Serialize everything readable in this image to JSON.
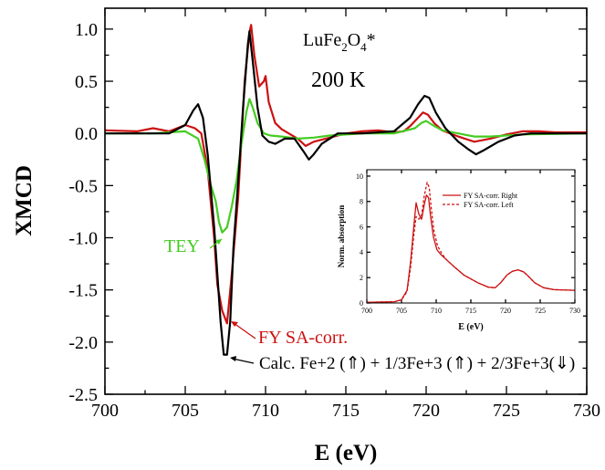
{
  "chart_data": {
    "type": "line",
    "xlabel": "E (eV)",
    "ylabel": "XMCD",
    "xlim": [
      700,
      730
    ],
    "ylim": [
      -2.5,
      1.2
    ],
    "xticks": [
      "700",
      "705",
      "710",
      "715",
      "720",
      "725",
      "730"
    ],
    "yticks": [
      "1.0",
      "0.5",
      "0.0",
      "-0.5",
      "-1.0",
      "-1.5",
      "-2.0",
      "-2.5"
    ],
    "grid": false,
    "annotations": {
      "compound": "LuFe",
      "compound_sub1": "2",
      "compound_mid": "O",
      "compound_sub2": "4",
      "compound_star": "*",
      "temperature": "200 K",
      "tey_label": "TEY",
      "fy_label": "FY SA-corr.",
      "calc_label": "Calc.  Fe+2 (⇑) + 1/3Fe+3 (⇑) + 2/3Fe+3(⇓)"
    },
    "series": [
      {
        "name": "FY SA-corr.",
        "color": "#cc1111",
        "x": [
          700,
          702,
          703,
          704,
          705,
          705.6,
          706,
          706.4,
          706.8,
          707.0,
          707.3,
          707.6,
          707.9,
          708.3,
          708.7,
          709.0,
          709.1,
          709.3,
          709.6,
          709.9,
          710.0,
          710.2,
          710.6,
          711,
          712,
          712.5,
          713,
          714,
          715,
          716,
          717,
          718,
          718.6,
          719.0,
          719.5,
          719.8,
          720.1,
          720.5,
          721,
          722,
          723,
          724,
          725,
          726,
          727,
          728,
          729,
          730
        ],
        "y": [
          0.03,
          0.02,
          0.05,
          0.02,
          0.08,
          0.05,
          0.0,
          -0.35,
          -1.0,
          -1.45,
          -1.7,
          -1.82,
          -1.35,
          -0.6,
          0.5,
          0.97,
          1.04,
          0.75,
          0.45,
          0.5,
          0.55,
          0.3,
          0.1,
          0.04,
          -0.05,
          -0.12,
          -0.08,
          -0.04,
          0.0,
          0.02,
          0.03,
          0.01,
          0.02,
          0.07,
          0.15,
          0.2,
          0.18,
          0.1,
          0.03,
          -0.03,
          -0.08,
          -0.05,
          -0.01,
          0.02,
          0.02,
          0.01,
          0.01,
          0.01
        ]
      },
      {
        "name": "TEY",
        "color": "#44cc22",
        "x": [
          700,
          703,
          705,
          705.8,
          706.2,
          706.6,
          706.9,
          707.1,
          707.3,
          707.6,
          707.9,
          708.2,
          708.5,
          708.8,
          709.0,
          709.2,
          709.5,
          709.9,
          710.3,
          711,
          712,
          713,
          714,
          716,
          718,
          719.3,
          719.7,
          720.0,
          720.4,
          721,
          722,
          723,
          724,
          726,
          730
        ],
        "y": [
          0.0,
          0.0,
          0.02,
          -0.05,
          -0.25,
          -0.5,
          -0.65,
          -0.85,
          -0.95,
          -0.9,
          -0.7,
          -0.45,
          -0.1,
          0.2,
          0.33,
          0.25,
          0.1,
          0.0,
          -0.02,
          -0.03,
          -0.05,
          -0.04,
          -0.02,
          0.0,
          0.0,
          0.05,
          0.1,
          0.12,
          0.08,
          0.03,
          0.0,
          -0.03,
          -0.03,
          -0.01,
          0.0
        ]
      },
      {
        "name": "Calc.",
        "color": "#000000",
        "x": [
          700,
          704,
          705,
          705.5,
          705.8,
          706.1,
          706.4,
          706.8,
          707.0,
          707.2,
          707.4,
          707.6,
          707.8,
          708.0,
          708.3,
          708.6,
          708.9,
          709.0,
          709.2,
          709.5,
          709.8,
          710.2,
          710.6,
          711.2,
          711.8,
          712.4,
          712.7,
          713.0,
          713.5,
          714.5,
          716,
          718,
          719.0,
          719.5,
          719.9,
          720.2,
          720.6,
          721.2,
          722,
          722.6,
          723.1,
          723.6,
          724.5,
          725.5,
          726.5,
          728,
          730
        ],
        "y": [
          0.0,
          0.0,
          0.08,
          0.22,
          0.28,
          0.15,
          -0.2,
          -0.9,
          -1.35,
          -1.8,
          -2.12,
          -2.12,
          -1.8,
          -1.1,
          -0.45,
          0.25,
          0.85,
          0.98,
          0.7,
          0.25,
          -0.02,
          -0.08,
          -0.1,
          -0.05,
          -0.05,
          -0.18,
          -0.25,
          -0.2,
          -0.1,
          0.0,
          0.0,
          0.02,
          0.15,
          0.28,
          0.36,
          0.34,
          0.2,
          0.05,
          -0.08,
          -0.15,
          -0.2,
          -0.16,
          -0.08,
          -0.02,
          0.0,
          0.0,
          0.0
        ]
      }
    ],
    "inset": {
      "type": "line",
      "xlabel": "E (eV)",
      "ylabel": "Norm. absorption",
      "xlim": [
        700,
        730
      ],
      "ylim": [
        0,
        10.5
      ],
      "xticks": [
        "700",
        "705",
        "710",
        "715",
        "720",
        "725",
        "730"
      ],
      "yticks": [
        "0",
        "2",
        "4",
        "6",
        "8",
        "10"
      ],
      "legend": [
        "FY SA-corr. Right",
        "FY SA-corr. Left"
      ],
      "legend_position": "top-right",
      "series": [
        {
          "name": "FY SA-corr. Right",
          "style": "solid",
          "color": "#cc1111",
          "x": [
            700,
            704,
            705,
            705.8,
            706.3,
            706.8,
            707.1,
            707.5,
            707.9,
            708.3,
            708.6,
            708.9,
            709.2,
            709.6,
            710.1,
            710.7,
            711.5,
            712.5,
            714,
            716,
            717.5,
            718.5,
            719.3,
            720.2,
            721,
            721.8,
            722.6,
            723.3,
            724.2,
            725.5,
            727,
            730
          ],
          "y": [
            0.05,
            0.1,
            0.25,
            1.0,
            3.2,
            6.2,
            7.9,
            7.0,
            6.6,
            7.8,
            8.5,
            8.3,
            6.8,
            5.2,
            4.2,
            3.8,
            3.4,
            2.9,
            2.2,
            1.6,
            1.25,
            1.2,
            1.6,
            2.2,
            2.5,
            2.6,
            2.45,
            2.1,
            1.6,
            1.2,
            1.05,
            1.0
          ]
        },
        {
          "name": "FY SA-corr. Left",
          "style": "dashed",
          "color": "#cc1111",
          "x": [
            700,
            704,
            705,
            705.8,
            706.3,
            706.8,
            707.1,
            707.5,
            707.9,
            708.3,
            708.7,
            709.0,
            709.3,
            709.7,
            710.2,
            710.8,
            711.5,
            712.5,
            714,
            716,
            717.5,
            718.5,
            719.3,
            720.2,
            721,
            721.8,
            722.6,
            723.3,
            724.2,
            725.5,
            727,
            730
          ],
          "y": [
            0.05,
            0.1,
            0.25,
            0.9,
            2.8,
            5.5,
            6.8,
            6.6,
            6.9,
            8.5,
            9.5,
            9.1,
            7.4,
            5.6,
            4.5,
            3.9,
            3.4,
            2.9,
            2.2,
            1.6,
            1.25,
            1.2,
            1.6,
            2.2,
            2.5,
            2.6,
            2.45,
            2.1,
            1.6,
            1.2,
            1.05,
            1.0
          ]
        }
      ]
    }
  }
}
